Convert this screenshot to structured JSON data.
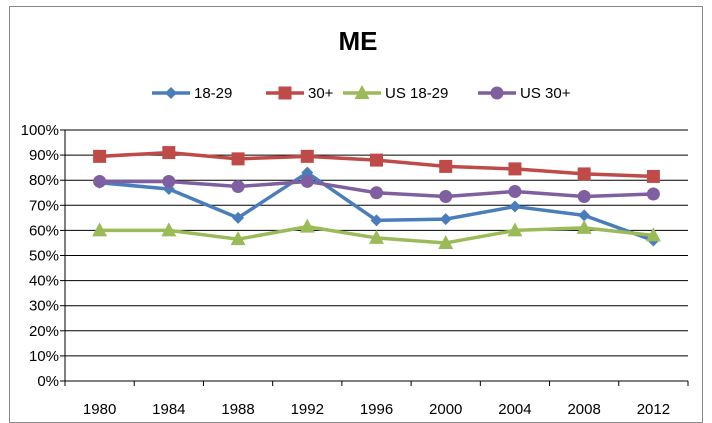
{
  "chart_data": {
    "type": "line",
    "title": "ME",
    "xlabel": "",
    "ylabel": "",
    "categories": [
      "1980",
      "1984",
      "1988",
      "1992",
      "1996",
      "2000",
      "2004",
      "2008",
      "2012"
    ],
    "ylim": [
      0,
      100
    ],
    "y_tick_labels": [
      "0%",
      "10%",
      "20%",
      "30%",
      "40%",
      "50%",
      "60%",
      "70%",
      "80%",
      "90%",
      "100%"
    ],
    "grid": "horizontal",
    "legend_position": "top",
    "series": [
      {
        "name": "18-29",
        "color": "#4a7ebb",
        "marker": "diamond",
        "values": [
          79,
          76.5,
          65,
          83,
          64,
          64.5,
          69.5,
          66,
          56
        ]
      },
      {
        "name": "30+",
        "color": "#be4b48",
        "marker": "square",
        "values": [
          89.5,
          91,
          88.5,
          89.5,
          88,
          85.5,
          84.5,
          82.5,
          81.5
        ]
      },
      {
        "name": "US 18-29",
        "color": "#9bbb59",
        "marker": "triangle",
        "values": [
          60,
          60,
          56.5,
          61.5,
          57,
          55,
          60,
          61,
          58
        ]
      },
      {
        "name": "US 30+",
        "color": "#7f5fa0",
        "marker": "circle",
        "values": [
          79.5,
          79.5,
          77.5,
          79.5,
          75,
          73.5,
          75.5,
          73.5,
          74.5
        ]
      }
    ]
  }
}
